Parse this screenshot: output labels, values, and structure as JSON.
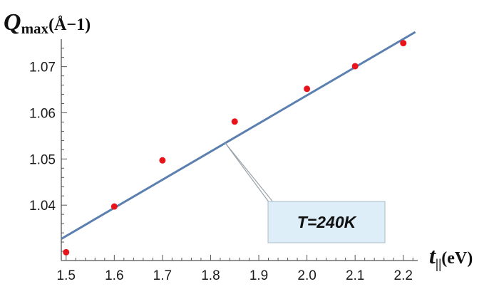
{
  "chart_data": {
    "type": "scatter",
    "xlabel": {
      "main": "t",
      "sub": "||",
      "unit": "(eV)"
    },
    "ylabel": {
      "main": "Q",
      "sub": "max",
      "unit": "(Å−1)"
    },
    "xlim": [
      1.49,
      2.23
    ],
    "ylim": [
      1.028,
      1.0775
    ],
    "x_ticks": [
      1.5,
      1.6,
      1.7,
      1.8,
      1.9,
      2.0,
      2.1,
      2.2
    ],
    "x_tick_labels": [
      "1.5",
      "1.6",
      "1.7",
      "1.8",
      "1.9",
      "2.0",
      "2.1",
      "2.2"
    ],
    "y_ticks": [
      1.04,
      1.05,
      1.06,
      1.07
    ],
    "y_tick_labels": [
      "1.04",
      "1.05",
      "1.06",
      "1.07"
    ],
    "grid": false,
    "series": [
      {
        "kind": "points",
        "color": "#e8141c",
        "points": [
          {
            "x": 1.5,
            "y": 1.0298
          },
          {
            "x": 1.6,
            "y": 1.0397
          },
          {
            "x": 1.7,
            "y": 1.0497
          },
          {
            "x": 1.85,
            "y": 1.0581
          },
          {
            "x": 2.0,
            "y": 1.0652
          },
          {
            "x": 2.1,
            "y": 1.0701
          },
          {
            "x": 2.2,
            "y": 1.0751
          }
        ]
      },
      {
        "kind": "fit-line",
        "color": "#5b80b0",
        "points": [
          {
            "x": 1.49,
            "y": 1.0327
          },
          {
            "x": 2.225,
            "y": 1.0775
          }
        ]
      }
    ],
    "annotation": {
      "text": "T=240K",
      "anchor": {
        "x": 1.83,
        "y": 1.0535
      }
    }
  }
}
